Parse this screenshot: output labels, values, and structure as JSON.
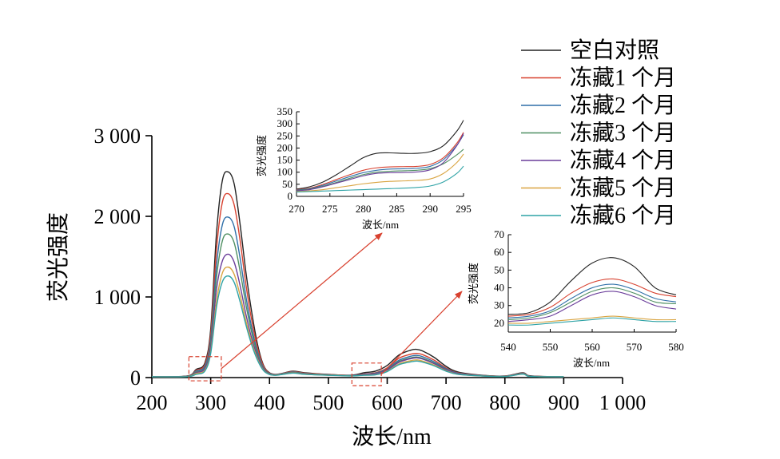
{
  "colors": {
    "blank": "#222222",
    "m1": "#d8412f",
    "m2": "#2f6fa8",
    "m3": "#4f8f62",
    "m4": "#6a3d9a",
    "m5": "#d9a441",
    "m6": "#2fa3a6",
    "arrow": "#d8412f",
    "box": "#d8412f"
  },
  "chart_data": [
    {
      "type": "line",
      "xlabel": "波长/nm",
      "ylabel": "荧光强度",
      "xlim": [
        200,
        1000
      ],
      "ylim": [
        0,
        3000
      ],
      "xticks": [
        "200",
        "300",
        "400",
        "500",
        "600",
        "700",
        "800",
        "900",
        "1 000"
      ],
      "yticks": [
        "0",
        "1 000",
        "2 000",
        "3 000"
      ],
      "xtick_values": [
        200,
        300,
        400,
        500,
        600,
        700,
        800,
        900,
        1000
      ],
      "ytick_values": [
        0,
        1000,
        2000,
        3000
      ],
      "legend_position": "top-right",
      "series": [
        {
          "name": "空白对照",
          "color_key": "blank",
          "x": [
            200,
            260,
            275,
            290,
            300,
            310,
            320,
            330,
            340,
            350,
            360,
            370,
            380,
            390,
            400,
            410,
            420,
            440,
            460,
            500,
            540,
            560,
            580,
            600,
            620,
            640,
            650,
            660,
            680,
            700,
            720,
            760,
            800,
            830,
            840,
            860,
            900
          ],
          "y": [
            10,
            20,
            100,
            180,
            600,
            1800,
            2450,
            2550,
            2400,
            1900,
            1300,
            800,
            400,
            150,
            60,
            40,
            50,
            80,
            60,
            40,
            30,
            60,
            80,
            150,
            280,
            340,
            350,
            330,
            250,
            140,
            70,
            30,
            20,
            60,
            25,
            15,
            10
          ]
        },
        {
          "name": "冻藏1 个月",
          "color_key": "m1",
          "x": [
            200,
            260,
            275,
            290,
            300,
            310,
            320,
            330,
            340,
            350,
            360,
            370,
            380,
            390,
            400,
            410,
            420,
            440,
            460,
            500,
            540,
            560,
            580,
            600,
            620,
            640,
            650,
            660,
            680,
            700,
            720,
            760,
            800,
            830,
            840,
            860,
            900
          ],
          "y": [
            10,
            18,
            90,
            160,
            540,
            1600,
            2180,
            2280,
            2140,
            1700,
            1150,
            700,
            360,
            140,
            55,
            38,
            48,
            75,
            55,
            38,
            28,
            45,
            60,
            120,
            240,
            290,
            300,
            285,
            215,
            120,
            60,
            28,
            18,
            55,
            22,
            14,
            10
          ]
        },
        {
          "name": "冻藏2 个月",
          "color_key": "m2",
          "x": [
            200,
            260,
            275,
            290,
            300,
            310,
            320,
            330,
            340,
            350,
            360,
            370,
            380,
            390,
            400,
            410,
            420,
            440,
            460,
            500,
            540,
            560,
            580,
            600,
            620,
            640,
            650,
            660,
            680,
            700,
            720,
            760,
            800,
            830,
            840,
            860,
            900
          ],
          "y": [
            10,
            16,
            80,
            140,
            470,
            1400,
            1900,
            1990,
            1870,
            1480,
            1000,
            610,
            310,
            120,
            50,
            35,
            45,
            70,
            50,
            35,
            26,
            42,
            55,
            110,
            215,
            265,
            275,
            260,
            195,
            110,
            55,
            26,
            17,
            52,
            20,
            13,
            10
          ]
        },
        {
          "name": "冻藏3 个月",
          "color_key": "m3",
          "x": [
            200,
            260,
            275,
            290,
            300,
            310,
            320,
            330,
            340,
            350,
            360,
            370,
            380,
            390,
            400,
            410,
            420,
            440,
            460,
            500,
            540,
            560,
            580,
            600,
            620,
            640,
            650,
            660,
            680,
            700,
            720,
            760,
            800,
            830,
            840,
            860,
            900
          ],
          "y": [
            10,
            15,
            70,
            120,
            420,
            1250,
            1700,
            1780,
            1670,
            1320,
            900,
            550,
            280,
            110,
            45,
            33,
            42,
            65,
            48,
            33,
            25,
            40,
            52,
            100,
            200,
            245,
            255,
            240,
            180,
            100,
            50,
            24,
            16,
            50,
            19,
            12,
            10
          ]
        },
        {
          "name": "冻藏4 个月",
          "color_key": "m4",
          "x": [
            200,
            260,
            275,
            290,
            300,
            310,
            320,
            330,
            340,
            350,
            360,
            370,
            380,
            390,
            400,
            410,
            420,
            440,
            460,
            500,
            540,
            560,
            580,
            600,
            620,
            640,
            650,
            660,
            680,
            700,
            720,
            760,
            800,
            830,
            840,
            860,
            900
          ],
          "y": [
            10,
            14,
            60,
            110,
            370,
            1100,
            1450,
            1530,
            1430,
            1140,
            780,
            480,
            250,
            100,
            42,
            31,
            40,
            60,
            45,
            31,
            24,
            38,
            48,
            95,
            190,
            235,
            245,
            230,
            172,
            95,
            48,
            23,
            15,
            48,
            18,
            12,
            10
          ]
        },
        {
          "name": "冻藏5 个月",
          "color_key": "m5",
          "x": [
            200,
            260,
            275,
            290,
            300,
            310,
            320,
            330,
            340,
            350,
            360,
            370,
            380,
            390,
            400,
            410,
            420,
            440,
            460,
            500,
            540,
            560,
            580,
            600,
            620,
            640,
            650,
            660,
            680,
            700,
            720,
            760,
            800,
            830,
            840,
            860,
            900
          ],
          "y": [
            10,
            13,
            50,
            90,
            320,
            950,
            1300,
            1370,
            1280,
            1020,
            700,
            430,
            225,
            90,
            40,
            30,
            38,
            58,
            42,
            30,
            22,
            30,
            36,
            80,
            170,
            210,
            220,
            205,
            155,
            85,
            42,
            21,
            14,
            45,
            17,
            11,
            10
          ]
        },
        {
          "name": "冻藏6 个月",
          "color_key": "m6",
          "x": [
            200,
            260,
            275,
            290,
            300,
            310,
            320,
            330,
            340,
            350,
            360,
            370,
            380,
            390,
            400,
            410,
            420,
            440,
            460,
            500,
            540,
            560,
            580,
            600,
            620,
            640,
            650,
            660,
            680,
            700,
            720,
            760,
            800,
            830,
            840,
            860,
            900
          ],
          "y": [
            10,
            12,
            40,
            80,
            300,
            880,
            1190,
            1260,
            1180,
            940,
            650,
            400,
            210,
            85,
            38,
            28,
            36,
            55,
            40,
            28,
            21,
            28,
            34,
            75,
            160,
            195,
            205,
            192,
            145,
            80,
            40,
            20,
            13,
            43,
            16,
            11,
            10
          ]
        }
      ],
      "highlight_regions": [
        {
          "x": [
            263,
            318
          ],
          "y": [
            -40,
            260
          ]
        },
        {
          "x": [
            540,
            590
          ],
          "y": [
            -100,
            180
          ]
        }
      ]
    },
    {
      "type": "line",
      "xlabel": "波长/nm",
      "ylabel": "荧光强度",
      "xlim": [
        270,
        295
      ],
      "ylim": [
        0,
        350
      ],
      "xticks": [
        "270",
        "275",
        "280",
        "285",
        "290",
        "295"
      ],
      "yticks": [
        "0",
        "50",
        "100",
        "150",
        "200",
        "250",
        "300",
        "350"
      ],
      "xtick_values": [
        270,
        275,
        280,
        285,
        290,
        295
      ],
      "ytick_values": [
        0,
        50,
        100,
        150,
        200,
        250,
        300,
        350
      ],
      "series": [
        {
          "color_key": "blank",
          "x": [
            270,
            272,
            274,
            276,
            278,
            280,
            282,
            284,
            286,
            288,
            290,
            292,
            294,
            295
          ],
          "y": [
            30,
            40,
            60,
            90,
            125,
            160,
            178,
            180,
            178,
            178,
            185,
            210,
            270,
            315
          ]
        },
        {
          "color_key": "m1",
          "x": [
            270,
            272,
            274,
            276,
            278,
            280,
            282,
            284,
            286,
            288,
            290,
            292,
            294,
            295
          ],
          "y": [
            28,
            34,
            50,
            70,
            90,
            108,
            118,
            122,
            123,
            124,
            132,
            160,
            220,
            265
          ]
        },
        {
          "color_key": "m2",
          "x": [
            270,
            272,
            274,
            276,
            278,
            280,
            282,
            284,
            286,
            288,
            290,
            292,
            294,
            295
          ],
          "y": [
            26,
            32,
            46,
            64,
            82,
            98,
            108,
            113,
            114,
            116,
            124,
            152,
            212,
            255
          ]
        },
        {
          "color_key": "m3",
          "x": [
            270,
            272,
            274,
            276,
            278,
            280,
            282,
            284,
            286,
            288,
            290,
            292,
            294,
            295
          ],
          "y": [
            24,
            30,
            42,
            58,
            75,
            90,
            100,
            104,
            106,
            108,
            115,
            135,
            172,
            195
          ]
        },
        {
          "color_key": "m4",
          "x": [
            270,
            272,
            274,
            276,
            278,
            280,
            282,
            284,
            286,
            288,
            290,
            292,
            294,
            295
          ],
          "y": [
            23,
            28,
            40,
            55,
            70,
            85,
            95,
            98,
            99,
            101,
            110,
            140,
            210,
            260
          ]
        },
        {
          "color_key": "m5",
          "x": [
            270,
            272,
            274,
            276,
            278,
            280,
            282,
            284,
            286,
            288,
            290,
            292,
            294,
            295
          ],
          "y": [
            20,
            23,
            28,
            36,
            44,
            52,
            58,
            62,
            64,
            66,
            72,
            95,
            140,
            175
          ]
        },
        {
          "color_key": "m6",
          "x": [
            270,
            272,
            274,
            276,
            278,
            280,
            282,
            284,
            286,
            288,
            290,
            292,
            294,
            295
          ],
          "y": [
            18,
            20,
            22,
            24,
            26,
            28,
            30,
            32,
            34,
            37,
            43,
            60,
            95,
            125
          ]
        }
      ]
    },
    {
      "type": "line",
      "xlabel": "波长/nm",
      "ylabel": "荧光强度",
      "xlim": [
        540,
        580
      ],
      "ylim": [
        15,
        70
      ],
      "xticks": [
        "540",
        "550",
        "560",
        "570",
        "580"
      ],
      "yticks": [
        "20",
        "30",
        "40",
        "50",
        "60",
        "70"
      ],
      "xtick_values": [
        540,
        550,
        560,
        570,
        580
      ],
      "ytick_values": [
        20,
        30,
        40,
        50,
        60,
        70
      ],
      "series": [
        {
          "color_key": "blank",
          "x": [
            540,
            545,
            550,
            555,
            560,
            565,
            570,
            575,
            580
          ],
          "y": [
            25,
            26,
            32,
            44,
            54,
            57,
            52,
            40,
            36
          ]
        },
        {
          "color_key": "m1",
          "x": [
            540,
            545,
            550,
            555,
            560,
            565,
            570,
            575,
            580
          ],
          "y": [
            24,
            25,
            29,
            37,
            43,
            45,
            42,
            37,
            35
          ]
        },
        {
          "color_key": "m2",
          "x": [
            540,
            545,
            550,
            555,
            560,
            565,
            570,
            575,
            580
          ],
          "y": [
            23,
            24,
            27,
            34,
            40,
            42,
            39,
            34,
            32
          ]
        },
        {
          "color_key": "m3",
          "x": [
            540,
            545,
            550,
            555,
            560,
            565,
            570,
            575,
            580
          ],
          "y": [
            22,
            23,
            26,
            32,
            38,
            40,
            37,
            32,
            31
          ]
        },
        {
          "color_key": "m4",
          "x": [
            540,
            545,
            550,
            555,
            560,
            565,
            570,
            575,
            580
          ],
          "y": [
            21,
            22,
            24,
            30,
            36,
            38,
            35,
            30,
            28
          ]
        },
        {
          "color_key": "m5",
          "x": [
            540,
            545,
            550,
            555,
            560,
            565,
            570,
            575,
            580
          ],
          "y": [
            20,
            20,
            21,
            22,
            23,
            24,
            23,
            22,
            22
          ]
        },
        {
          "color_key": "m6",
          "x": [
            540,
            545,
            550,
            555,
            560,
            565,
            570,
            575,
            580
          ],
          "y": [
            19,
            19,
            20,
            21,
            22,
            23,
            22,
            21,
            21
          ]
        }
      ]
    }
  ]
}
